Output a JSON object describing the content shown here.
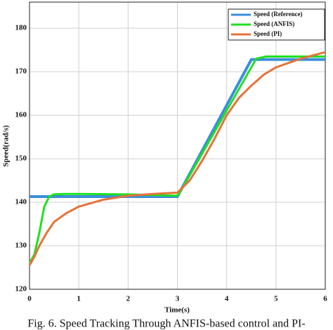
{
  "chart_data": {
    "type": "line",
    "caption": "Fig. 6.  Speed Tracking Through ANFIS-based control and PI-",
    "x_label": "Time(s)",
    "y_label": "Speed(rad/s)",
    "xlim": [
      0,
      6
    ],
    "xticks": [
      0,
      1,
      2,
      3,
      4,
      5,
      6
    ],
    "ylim": [
      120,
      186
    ],
    "yticks": [
      120,
      130,
      140,
      150,
      160,
      170,
      180
    ],
    "grid": true,
    "legend": "top-right",
    "series": [
      {
        "name": "Speed (Reference)",
        "color": "#3a8fd9",
        "x": [
          0,
          3,
          4.5,
          6
        ],
        "values": [
          141.3,
          141.3,
          172.8,
          172.8
        ]
      },
      {
        "name": "Speed (ANFIS)",
        "color": "#1fe01f",
        "x": [
          0,
          0.1,
          0.2,
          0.3,
          0.4,
          0.5,
          0.7,
          1,
          2,
          3,
          3.05,
          4.6,
          4.8,
          6
        ],
        "values": [
          126,
          128,
          133,
          139,
          141.3,
          141.8,
          141.9,
          141.9,
          141.8,
          141.5,
          142.2,
          173,
          173.5,
          173.5
        ]
      },
      {
        "name": "Speed (PI)",
        "color": "#e4733a",
        "x": [
          0,
          0.1,
          0.2,
          0.35,
          0.5,
          0.75,
          1,
          1.5,
          2,
          2.5,
          3,
          3.25,
          3.5,
          3.75,
          4,
          4.25,
          4.5,
          4.75,
          5,
          5.5,
          6
        ],
        "values": [
          125.5,
          127.5,
          130,
          133,
          135.5,
          137.5,
          139,
          140.6,
          141.5,
          141.9,
          142.2,
          145,
          149.5,
          154.5,
          160,
          164,
          166.8,
          169.3,
          171,
          173,
          174.5
        ]
      }
    ]
  }
}
